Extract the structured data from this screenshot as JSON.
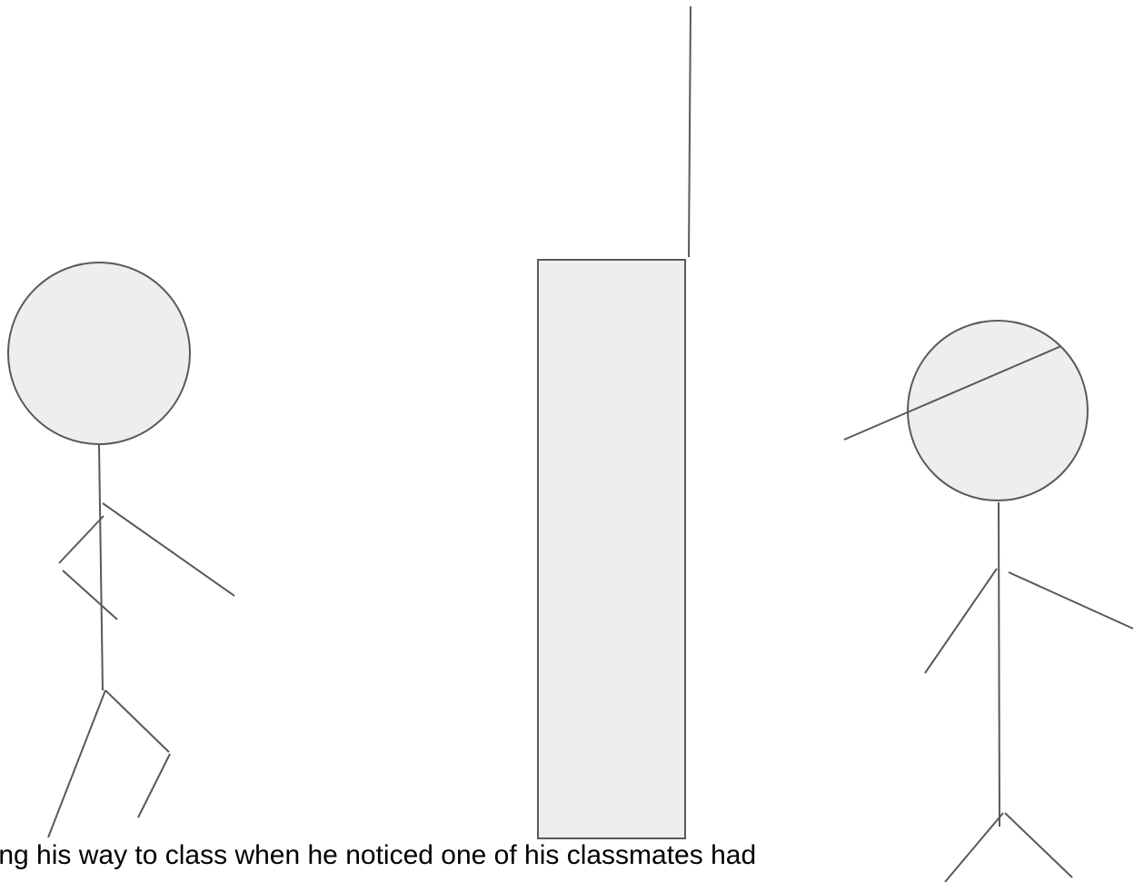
{
  "caption": {
    "text": "lking his way to class when he noticed one of his classmates had"
  },
  "colors": {
    "stroke": "#595959",
    "fill": "#eeeeee",
    "text": "#000000",
    "background": "#ffffff"
  }
}
